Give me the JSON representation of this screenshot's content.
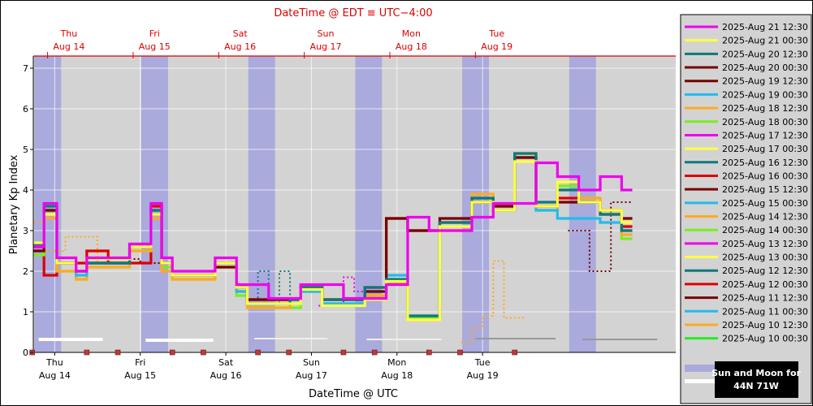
{
  "chart_data": {
    "type": "line",
    "title": "DateTime @ EDT ≡ UTC−4:00",
    "xlabel": "DateTime @ UTC",
    "ylabel": "Planetary Kp Index",
    "ylim": [
      0,
      7.3
    ],
    "y_ticks": [
      "0",
      "1",
      "2",
      "3",
      "4",
      "5",
      "6",
      "7"
    ],
    "grid": true,
    "legend_position": "right",
    "x_range_hours": [
      0,
      150
    ],
    "bottom_days": [
      {
        "wd": "Thu",
        "date": "Aug 14"
      },
      {
        "wd": "Fri",
        "date": "Aug 15"
      },
      {
        "wd": "Sat",
        "date": "Aug 16"
      },
      {
        "wd": "Sun",
        "date": "Aug 17"
      },
      {
        "wd": "Mon",
        "date": "Aug 18"
      },
      {
        "wd": "Tue",
        "date": "Aug 19"
      }
    ],
    "top_days": [
      {
        "wd": "Thu",
        "date": "Aug 14"
      },
      {
        "wd": "Fri",
        "date": "Aug 15"
      },
      {
        "wd": "Sat",
        "date": "Aug 16"
      },
      {
        "wd": "Sun",
        "date": "Aug 17"
      },
      {
        "wd": "Mon",
        "date": "Aug 18"
      },
      {
        "wd": "Tue",
        "date": "Aug 19"
      }
    ],
    "night_bands_hours": [
      [
        0.3,
        7.8
      ],
      [
        30.3,
        37.8
      ],
      [
        60.3,
        67.8
      ],
      [
        90.3,
        97.8
      ],
      [
        120.3,
        127.8
      ],
      [
        150.3,
        157.8
      ]
    ],
    "moon_bars_hours": [
      [
        1.5,
        19.5
      ],
      [
        31.5,
        50.5
      ],
      [
        62,
        82.5
      ],
      [
        93.5,
        114.5
      ],
      [
        124,
        146.5
      ],
      [
        154,
        175
      ]
    ],
    "colors": {
      "night_band": "#aaaadd",
      "plot_bg": "#d3d3d3",
      "top_axis": "#dd0000",
      "current": "#dd0000"
    },
    "series": [
      {
        "name": "2025-Aug 21 12:30",
        "color": "#ee00ee",
        "dash": false,
        "x": [
          -12,
          -6,
          3,
          6.6,
          12,
          15,
          21,
          27,
          33,
          36,
          39,
          45,
          51,
          57,
          60,
          66,
          72,
          75,
          81,
          87,
          93,
          99,
          105,
          111,
          114,
          117,
          123,
          129,
          135,
          141,
          147,
          153,
          159,
          165
        ],
        "y": [
          3.6,
          2.6,
          3.67,
          2.33,
          2.0,
          2.33,
          2.33,
          2.67,
          3.67,
          2.33,
          2.0,
          2.0,
          2.33,
          1.67,
          1.67,
          1.33,
          1.33,
          1.67,
          1.67,
          1.33,
          1.33,
          1.67,
          3.33,
          3.0,
          3.0,
          3.0,
          3.33,
          3.67,
          3.67,
          4.67,
          4.33,
          4.0,
          4.33,
          4.0
        ]
      },
      {
        "name": "2025-Aug 21 00:30",
        "color": "#ffff44",
        "dash": false,
        "x": [
          -12,
          -6,
          3,
          6.6,
          12,
          15,
          21,
          27,
          33,
          36,
          39,
          45,
          51,
          57,
          60,
          66,
          72,
          75,
          81,
          87,
          93,
          99,
          105,
          111,
          114,
          117,
          123,
          129,
          135,
          141,
          147,
          153,
          159,
          165
        ],
        "y": [
          3.0,
          2.7,
          3.4,
          2.2,
          2.0,
          2.3,
          2.3,
          2.6,
          3.4,
          2.2,
          1.9,
          1.9,
          2.2,
          1.6,
          1.2,
          1.2,
          1.2,
          1.55,
          1.15,
          1.15,
          1.3,
          1.75,
          0.8,
          0.8,
          3.1,
          3.1,
          3.7,
          3.5,
          4.7,
          3.6,
          4.2,
          3.7,
          3.5,
          3.2
        ]
      },
      {
        "name": "2025-Aug 20 12:30",
        "color": "#117777",
        "dash": false,
        "x": [
          -12,
          -6,
          3,
          6.6,
          12,
          15,
          21,
          27,
          33,
          36,
          39,
          45,
          51,
          57,
          60,
          66,
          72,
          75,
          81,
          87,
          93,
          99,
          105,
          111,
          114,
          117,
          123,
          129,
          135,
          141,
          147,
          153,
          159,
          165
        ],
        "y": [
          3.2,
          2.67,
          3.6,
          2.2,
          2.0,
          2.2,
          2.2,
          2.67,
          3.5,
          2.2,
          1.9,
          1.9,
          2.2,
          1.6,
          1.2,
          1.2,
          1.3,
          1.6,
          1.3,
          1.3,
          1.6,
          1.8,
          0.9,
          0.9,
          3.2,
          3.2,
          3.8,
          3.5,
          4.9,
          3.7,
          4.0,
          3.7,
          3.4,
          3.0
        ]
      },
      {
        "name": "2025-Aug 20 00:30",
        "color": "#770000",
        "dash": false,
        "x": [
          -12,
          -6,
          3,
          6.6,
          12,
          15,
          21,
          27,
          33,
          36,
          39,
          45,
          51,
          57,
          60,
          66,
          72,
          75,
          81,
          87,
          93,
          99,
          105,
          111,
          114,
          117,
          123,
          129,
          135,
          141,
          147,
          153,
          159,
          165
        ],
        "y": [
          3.1,
          2.5,
          3.5,
          2.2,
          2.0,
          2.2,
          2.2,
          2.6,
          3.4,
          2.2,
          1.9,
          1.9,
          2.1,
          1.6,
          1.3,
          1.3,
          1.3,
          1.6,
          1.3,
          1.3,
          1.5,
          3.3,
          3.0,
          3.0,
          3.3,
          3.3,
          3.7,
          3.6,
          4.8,
          3.6,
          3.7,
          3.7,
          3.5,
          3.3
        ]
      },
      {
        "name": "2025-Aug 19 12:30",
        "color": "#770000",
        "dash": false,
        "x": [],
        "y": []
      },
      {
        "name": "2025-Aug 19 00:30",
        "color": "#22bbee",
        "dash": false,
        "x": [
          -12,
          -6,
          3,
          6.6,
          12,
          15,
          21,
          27,
          33,
          36,
          39,
          45,
          51,
          57,
          60,
          66,
          72,
          75,
          81,
          87,
          93,
          99,
          105,
          111,
          114,
          117,
          123,
          129,
          135,
          141,
          147,
          153,
          159,
          165
        ],
        "y": [
          3.0,
          2.6,
          3.5,
          2.2,
          1.9,
          2.2,
          2.2,
          2.6,
          3.5,
          2.2,
          1.9,
          1.9,
          2.2,
          1.5,
          1.2,
          1.2,
          1.2,
          1.5,
          1.2,
          1.2,
          1.5,
          1.9,
          0.9,
          0.9,
          3.1,
          3.1,
          3.8,
          3.5,
          4.8,
          3.5,
          3.3,
          3.3,
          3.2,
          3.0
        ]
      },
      {
        "name": "2025-Aug 18 12:30",
        "color": "#ffaa22",
        "dash": false,
        "x": [
          -12,
          -6,
          3,
          6.6,
          12,
          15,
          21,
          27,
          33,
          36,
          39,
          45,
          51,
          57,
          60,
          66,
          72,
          75,
          81,
          87,
          93,
          99,
          105,
          111,
          114,
          117,
          123,
          129,
          135,
          141,
          147,
          153,
          159,
          165
        ],
        "y": [
          3.0,
          2.5,
          3.3,
          2.0,
          1.8,
          2.1,
          2.1,
          2.5,
          3.3,
          2.0,
          1.8,
          1.8,
          2.1,
          1.5,
          1.1,
          1.1,
          1.2,
          1.5,
          1.2,
          1.2,
          1.4,
          1.7,
          0.8,
          0.8,
          3.0,
          3.0,
          3.9,
          3.5,
          4.9,
          3.5,
          4.2,
          3.8,
          3.5,
          2.9
        ]
      },
      {
        "name": "2025-Aug 18 00:30",
        "color": "#77ee22",
        "dash": false,
        "x": [
          -12,
          -6,
          3,
          6.6,
          12,
          15,
          21,
          27,
          33,
          36,
          39,
          45,
          51,
          57,
          60,
          66,
          72,
          75,
          81,
          87,
          93,
          99,
          105,
          111,
          114,
          117,
          123,
          129,
          135,
          141,
          147,
          153,
          159,
          165
        ],
        "y": [
          2.9,
          2.4,
          3.5,
          2.0,
          1.8,
          2.1,
          2.1,
          2.5,
          3.4,
          2.1,
          1.8,
          1.8,
          2.1,
          1.4,
          1.1,
          1.1,
          1.1,
          1.5,
          1.2,
          1.2,
          1.4,
          1.8,
          0.85,
          0.85,
          3.1,
          3.1,
          3.8,
          3.5,
          4.8,
          3.6,
          4.1,
          3.8,
          3.4,
          2.8
        ]
      },
      {
        "name": "2025-Aug 17 12:30",
        "color": "#ee00ee",
        "dash": true,
        "x": [
          80,
          81,
          87,
          90,
          93
        ],
        "y": [
          1.15,
          1.2,
          1.85,
          1.5,
          1.5
        ]
      },
      {
        "name": "2025-Aug 17 00:30",
        "color": "#ffff44",
        "dash": false,
        "x": [],
        "y": []
      },
      {
        "name": "2025-Aug 16 12:30",
        "color": "#117777",
        "dash": true,
        "x": [
          60,
          63,
          66,
          69,
          72
        ],
        "y": [
          1.3,
          2.0,
          1.2,
          2.0,
          1.2
        ]
      },
      {
        "name": "2025-Aug 16 00:30",
        "color": "#dd0000",
        "dash": false,
        "x": [
          -12,
          -6,
          3,
          6.6,
          12,
          15,
          21,
          27,
          33,
          36,
          39,
          45,
          51,
          57,
          60,
          66,
          72,
          75,
          81,
          87,
          93,
          99,
          105,
          111,
          114,
          117,
          123,
          129,
          135,
          141,
          147,
          153,
          159,
          165
        ],
        "y": [
          1.8,
          2.6,
          1.9,
          2.2,
          2.2,
          2.5,
          2.2,
          2.2,
          3.6,
          2.2,
          1.9,
          1.9,
          2.2,
          1.6,
          1.3,
          1.3,
          1.3,
          1.6,
          1.3,
          1.3,
          1.6,
          3.3,
          3.0,
          3.0,
          3.2,
          3.2,
          3.7,
          3.6,
          4.8,
          3.6,
          3.8,
          3.7,
          3.4,
          3.1
        ]
      },
      {
        "name": "2025-Aug 15 12:30",
        "color": "#770000",
        "dash": true,
        "x": [
          27,
          30,
          33,
          36
        ],
        "y": [
          2.3,
          2.2,
          2.2,
          2.2
        ]
      },
      {
        "name": "2025-Aug 15 00:30",
        "color": "#22bbee",
        "dash": false,
        "x": [],
        "y": []
      },
      {
        "name": "2025-Aug 14 12:30",
        "color": "#ffaa22",
        "dash": true,
        "x": [
          0,
          3,
          9,
          15,
          18
        ],
        "y": [
          3.2,
          2.5,
          2.85,
          2.85,
          2.2
        ]
      },
      {
        "name": "2025-Aug 14 00:30",
        "color": "#77ee22",
        "dash": false,
        "x": [],
        "y": []
      },
      {
        "name": "2025-Aug 13 12:30",
        "color": "#ee00ee",
        "dash": false,
        "x": [],
        "y": []
      },
      {
        "name": "2025-Aug 13 00:30",
        "color": "#ffff44",
        "dash": false,
        "x": [],
        "y": []
      },
      {
        "name": "2025-Aug 12 12:30",
        "color": "#117777",
        "dash": false,
        "x": [],
        "y": []
      },
      {
        "name": "2025-Aug 12 00:30",
        "color": "#dd0000",
        "dash": false,
        "x": [],
        "y": []
      },
      {
        "name": "2025-Aug 11 12:30",
        "color": "#770000",
        "dash": true,
        "x": [
          150,
          153,
          156,
          159,
          162,
          165
        ],
        "y": [
          3.0,
          3.0,
          2.0,
          2.0,
          3.7,
          3.7
        ]
      },
      {
        "name": "2025-Aug 11 00:30",
        "color": "#22bbee",
        "dash": false,
        "x": [],
        "y": []
      },
      {
        "name": "2025-Aug 10 12:30",
        "color": "#ffaa22",
        "dash": true,
        "x": [
          120,
          123,
          126,
          129,
          132,
          135
        ],
        "y": [
          0.25,
          0.6,
          0.9,
          2.25,
          0.85,
          0.85
        ]
      },
      {
        "name": "2025-Aug 10 00:30",
        "color": "#22ee22",
        "dash": false,
        "x": [],
        "y": []
      }
    ],
    "legend_footer": {
      "label": "Sun and Moon for",
      "location": "44N 71W"
    }
  }
}
